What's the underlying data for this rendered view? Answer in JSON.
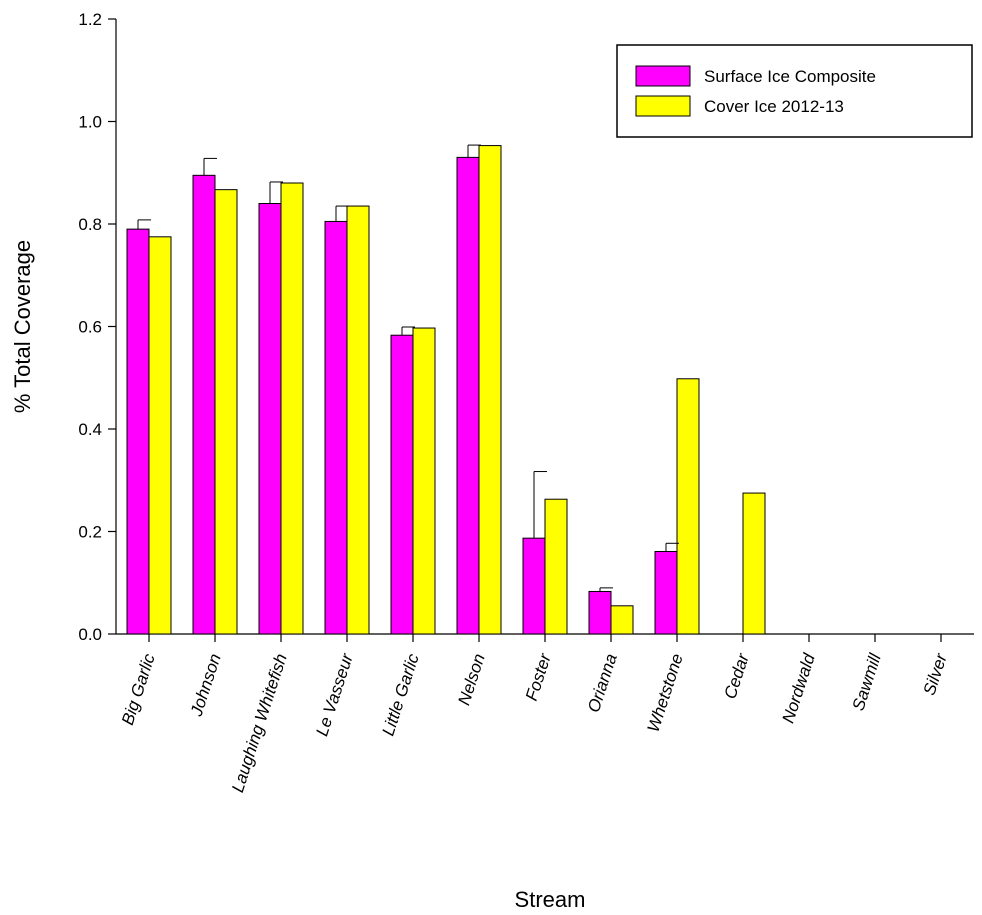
{
  "chart_data": {
    "type": "bar",
    "xlabel": "Stream",
    "ylabel": "% Total Coverage",
    "ylim": [
      0,
      1.2
    ],
    "yticks": [
      "0.0",
      "0.2",
      "0.4",
      "0.6",
      "0.8",
      "1.0",
      "1.2"
    ],
    "categories": [
      "Big Garlic",
      "Johnson",
      "Laughing Whitefish",
      "Le Vasseur",
      "Little Garlic",
      "Nelson",
      "Foster",
      "Orianna",
      "Whetstone",
      "Cedar",
      "Nordwald",
      "Sawmill",
      "Silver"
    ],
    "series": [
      {
        "name": "Surface Ice Composite",
        "color": "#ff00ff",
        "values": [
          0.79,
          0.895,
          0.84,
          0.805,
          0.583,
          0.93,
          0.187,
          0.083,
          0.161,
          null,
          null,
          null,
          null
        ],
        "error_upper": [
          0.018,
          0.033,
          0.042,
          0.03,
          0.016,
          0.024,
          0.13,
          0.007,
          0.016,
          null,
          null,
          null,
          null
        ]
      },
      {
        "name": "Cover Ice 2012-13",
        "color": "#ffff00",
        "values": [
          0.775,
          0.867,
          0.88,
          0.835,
          0.597,
          0.953,
          0.263,
          0.055,
          0.498,
          0.275,
          null,
          null,
          null
        ]
      }
    ],
    "legend_position": "top-right",
    "grid": false
  }
}
